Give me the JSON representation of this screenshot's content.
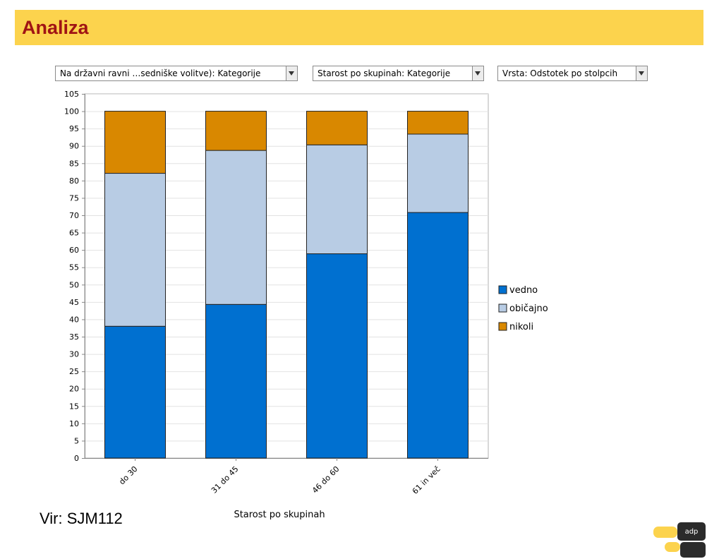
{
  "header": {
    "title": "Analiza"
  },
  "controls": {
    "dropdowns": [
      {
        "value": "Na državni ravni …sedniške volitve): Kategorije"
      },
      {
        "value": "Starost po skupinah: Kategorije"
      },
      {
        "value": "Vrsta: Odstotek po stolpcih"
      }
    ]
  },
  "source": "Vir: SJM112",
  "chart_data": {
    "type": "bar",
    "stacked": true,
    "categories": [
      "do 30",
      "31 do 45",
      "46 do 60",
      "61 in več"
    ],
    "series": [
      {
        "name": "vedno",
        "color": "#0070d0",
        "values": [
          38,
          44.3,
          58.9,
          70.8
        ]
      },
      {
        "name": "običajno",
        "color": "#b8cce4",
        "values": [
          44.1,
          44.4,
          31.4,
          22.6
        ]
      },
      {
        "name": "nikoli",
        "color": "#d98800",
        "values": [
          17.9,
          11.3,
          9.7,
          6.6
        ]
      }
    ],
    "title": "",
    "xlabel": "Starost po skupinah",
    "ylabel": "",
    "ylim": [
      0,
      105
    ],
    "yticks": [
      0,
      5,
      10,
      15,
      20,
      25,
      30,
      35,
      40,
      45,
      50,
      55,
      60,
      65,
      70,
      75,
      80,
      85,
      90,
      95,
      100,
      105
    ],
    "grid": true,
    "legend": "right"
  }
}
